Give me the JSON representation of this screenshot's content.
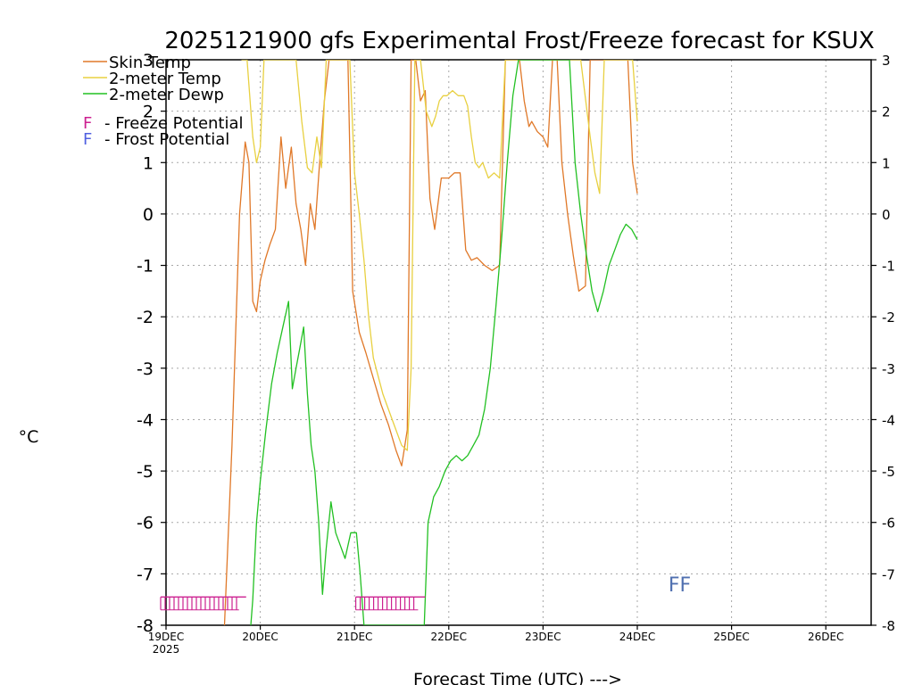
{
  "chart_data": {
    "type": "line",
    "title": "2025121900 gfs Experimental Frost/Freeze forecast for KSUX",
    "xlabel": "Forecast Time (UTC) --->",
    "ylabel": "°C",
    "ylim": [
      -8,
      3
    ],
    "xlim": [
      0,
      7.5
    ],
    "y_ticks": [
      "-8",
      "-7",
      "-6",
      "-5",
      "-4",
      "-3",
      "-2",
      "-1",
      "0",
      "1",
      "2",
      "3"
    ],
    "x_ticks": [
      {
        "value": 0,
        "label": "19DEC",
        "sublabel": "2025"
      },
      {
        "value": 1,
        "label": "20DEC"
      },
      {
        "value": 2,
        "label": "21DEC"
      },
      {
        "value": 3,
        "label": "22DEC"
      },
      {
        "value": 4,
        "label": "23DEC"
      },
      {
        "value": 5,
        "label": "24DEC"
      },
      {
        "value": 6,
        "label": "25DEC"
      },
      {
        "value": 7,
        "label": "26DEC"
      }
    ],
    "grid": true,
    "legend": [
      {
        "label": "Skin Temp",
        "color": "#e07828"
      },
      {
        "label": "2-meter Temp",
        "color": "#e8d040"
      },
      {
        "label": "2-meter Dewp",
        "color": "#22c022"
      }
    ],
    "potential_legend": [
      {
        "marker": "F",
        "label": "- Freeze Potential",
        "color": "#cc2090"
      },
      {
        "marker": "F",
        "label": "- Frost Potential",
        "color": "#5060e0"
      }
    ],
    "series": [
      {
        "name": "Skin Temp",
        "color": "#e07828",
        "x": [
          0.62,
          0.7,
          0.78,
          0.84,
          0.88,
          0.92,
          0.96,
          1.0,
          1.05,
          1.1,
          1.16,
          1.22,
          1.27,
          1.33,
          1.38,
          1.43,
          1.48,
          1.53,
          1.58,
          1.63,
          1.68,
          1.73,
          1.78,
          1.83,
          1.88,
          1.93,
          1.98,
          2.05,
          2.12,
          2.2,
          2.28,
          2.36,
          2.44,
          2.5,
          2.56,
          2.6,
          2.65,
          2.7,
          2.75,
          2.8,
          2.85,
          2.92,
          3.0,
          3.06,
          3.12,
          3.18,
          3.24,
          3.3,
          3.38,
          3.46,
          3.54,
          3.6,
          3.65,
          3.7,
          3.75,
          3.8,
          3.85,
          3.88,
          3.94,
          4.0,
          4.05,
          4.1,
          4.15,
          4.2,
          4.26,
          4.32,
          4.38,
          4.45,
          4.5,
          4.55,
          4.6,
          4.65,
          4.7,
          4.75,
          4.8,
          4.85,
          4.9,
          4.95,
          5.0
        ],
        "y": [
          -8,
          -4.5,
          0,
          1.4,
          1.0,
          -1.7,
          -1.9,
          -1.3,
          -0.9,
          -0.6,
          -0.3,
          1.5,
          0.5,
          1.3,
          0.2,
          -0.3,
          -1.0,
          0.2,
          -0.3,
          1.0,
          2.2,
          3.0,
          3.0,
          3.0,
          3.0,
          3.0,
          -1.5,
          -2.3,
          -2.7,
          -3.2,
          -3.7,
          -4.1,
          -4.6,
          -4.9,
          -4.2,
          3.0,
          3.0,
          2.2,
          2.4,
          0.3,
          -0.3,
          0.7,
          0.7,
          0.8,
          0.8,
          -0.7,
          -0.9,
          -0.85,
          -1.0,
          -1.1,
          -1.0,
          3.0,
          3.0,
          3.0,
          3.0,
          2.2,
          1.7,
          1.8,
          1.6,
          1.5,
          1.3,
          3.0,
          3.0,
          1.0,
          0.0,
          -0.8,
          -1.5,
          -1.4,
          3.0,
          3.0,
          3.0,
          3.0,
          3.0,
          3.0,
          3.0,
          3.0,
          3.0,
          1.0,
          0.4
        ]
      },
      {
        "name": "2-meter Temp",
        "color": "#e8d040",
        "x": [
          0.8,
          0.86,
          0.92,
          0.96,
          1.0,
          1.04,
          1.08,
          1.14,
          1.2,
          1.26,
          1.32,
          1.38,
          1.44,
          1.5,
          1.55,
          1.6,
          1.65,
          1.7,
          1.75,
          1.8,
          1.85,
          1.9,
          1.95,
          2.0,
          2.05,
          2.1,
          2.15,
          2.2,
          2.3,
          2.4,
          2.5,
          2.56,
          2.6,
          2.64,
          2.7,
          2.76,
          2.82,
          2.86,
          2.9,
          2.94,
          2.98,
          3.04,
          3.1,
          3.16,
          3.2,
          3.24,
          3.28,
          3.32,
          3.36,
          3.42,
          3.48,
          3.54,
          3.6,
          3.7,
          3.8,
          3.9,
          4.0,
          4.1,
          4.2,
          4.3,
          4.4,
          4.5,
          4.55,
          4.6,
          4.65,
          4.7,
          4.75,
          4.8,
          4.85,
          4.9,
          4.95,
          5.0
        ],
        "y": [
          3.0,
          3.0,
          1.5,
          1.0,
          1.3,
          3.0,
          3.0,
          3.0,
          3.0,
          3.0,
          3.0,
          3.0,
          1.8,
          0.9,
          0.8,
          1.5,
          0.9,
          3.0,
          3.0,
          3.0,
          3.0,
          3.0,
          3.0,
          0.8,
          0.0,
          -0.9,
          -2.0,
          -2.8,
          -3.5,
          -4.0,
          -4.5,
          -4.6,
          -3.0,
          3.0,
          3.0,
          2.0,
          1.7,
          1.9,
          2.2,
          2.3,
          2.3,
          2.4,
          2.3,
          2.3,
          2.1,
          1.5,
          1.0,
          0.9,
          1.0,
          0.7,
          0.8,
          0.7,
          3.0,
          3.0,
          3.0,
          3.0,
          3.0,
          3.0,
          3.0,
          3.0,
          3.0,
          1.5,
          0.8,
          0.4,
          3.0,
          3.0,
          3.0,
          3.0,
          3.0,
          3.0,
          3.0,
          1.8
        ]
      },
      {
        "name": "2-meter Dewp",
        "color": "#22c022",
        "x": [
          0.9,
          0.92,
          0.96,
          1.0,
          1.06,
          1.12,
          1.18,
          1.24,
          1.3,
          1.34,
          1.38,
          1.42,
          1.46,
          1.5,
          1.54,
          1.58,
          1.62,
          1.66,
          1.7,
          1.75,
          1.8,
          1.84,
          1.9,
          1.96,
          2.02,
          2.06,
          2.1,
          2.14,
          2.18,
          2.22,
          2.26,
          2.3,
          2.36,
          2.44,
          2.5,
          2.56,
          2.62,
          2.68,
          2.74,
          2.78,
          2.84,
          2.9,
          2.96,
          3.02,
          3.08,
          3.14,
          3.2,
          3.26,
          3.32,
          3.38,
          3.44,
          3.5,
          3.56,
          3.62,
          3.68,
          3.74,
          3.8,
          3.86,
          3.92,
          3.96,
          4.0,
          4.04,
          4.1,
          4.16,
          4.22,
          4.28,
          4.34,
          4.4,
          4.46,
          4.52,
          4.58,
          4.64,
          4.7,
          4.76,
          4.82,
          4.88,
          4.94,
          5.0
        ],
        "y": [
          -8,
          -7.5,
          -6.0,
          -5.2,
          -4.2,
          -3.3,
          -2.7,
          -2.2,
          -1.7,
          -3.4,
          -3.0,
          -2.6,
          -2.2,
          -3.5,
          -4.5,
          -5.0,
          -6.0,
          -7.4,
          -6.5,
          -5.6,
          -6.2,
          -6.4,
          -6.7,
          -6.2,
          -6.2,
          -7.0,
          -8,
          -8,
          -8,
          -8,
          -8,
          -8,
          -8,
          -8,
          -8,
          -8,
          -8,
          -8,
          -8,
          -6.0,
          -5.5,
          -5.3,
          -5.0,
          -4.8,
          -4.7,
          -4.8,
          -4.7,
          -4.5,
          -4.3,
          -3.8,
          -3.0,
          -1.8,
          -0.5,
          1.0,
          2.3,
          3.0,
          3.0,
          3.0,
          3.0,
          3.0,
          3.0,
          3.0,
          3.0,
          3.0,
          3.0,
          3.0,
          1.0,
          0.0,
          -0.8,
          -1.5,
          -1.9,
          -1.5,
          -1.0,
          -0.7,
          -0.4,
          -0.2,
          -0.3,
          -0.5
        ]
      }
    ],
    "freeze_marks": [
      {
        "start": 0.0,
        "end": 0.85,
        "color": "#cc2090"
      },
      {
        "start": 2.07,
        "end": 2.75,
        "color": "#cc2090"
      }
    ],
    "ff_annotation": {
      "text": "FF",
      "x": 5.45,
      "y": -7.2,
      "color": "#5070b0"
    }
  }
}
